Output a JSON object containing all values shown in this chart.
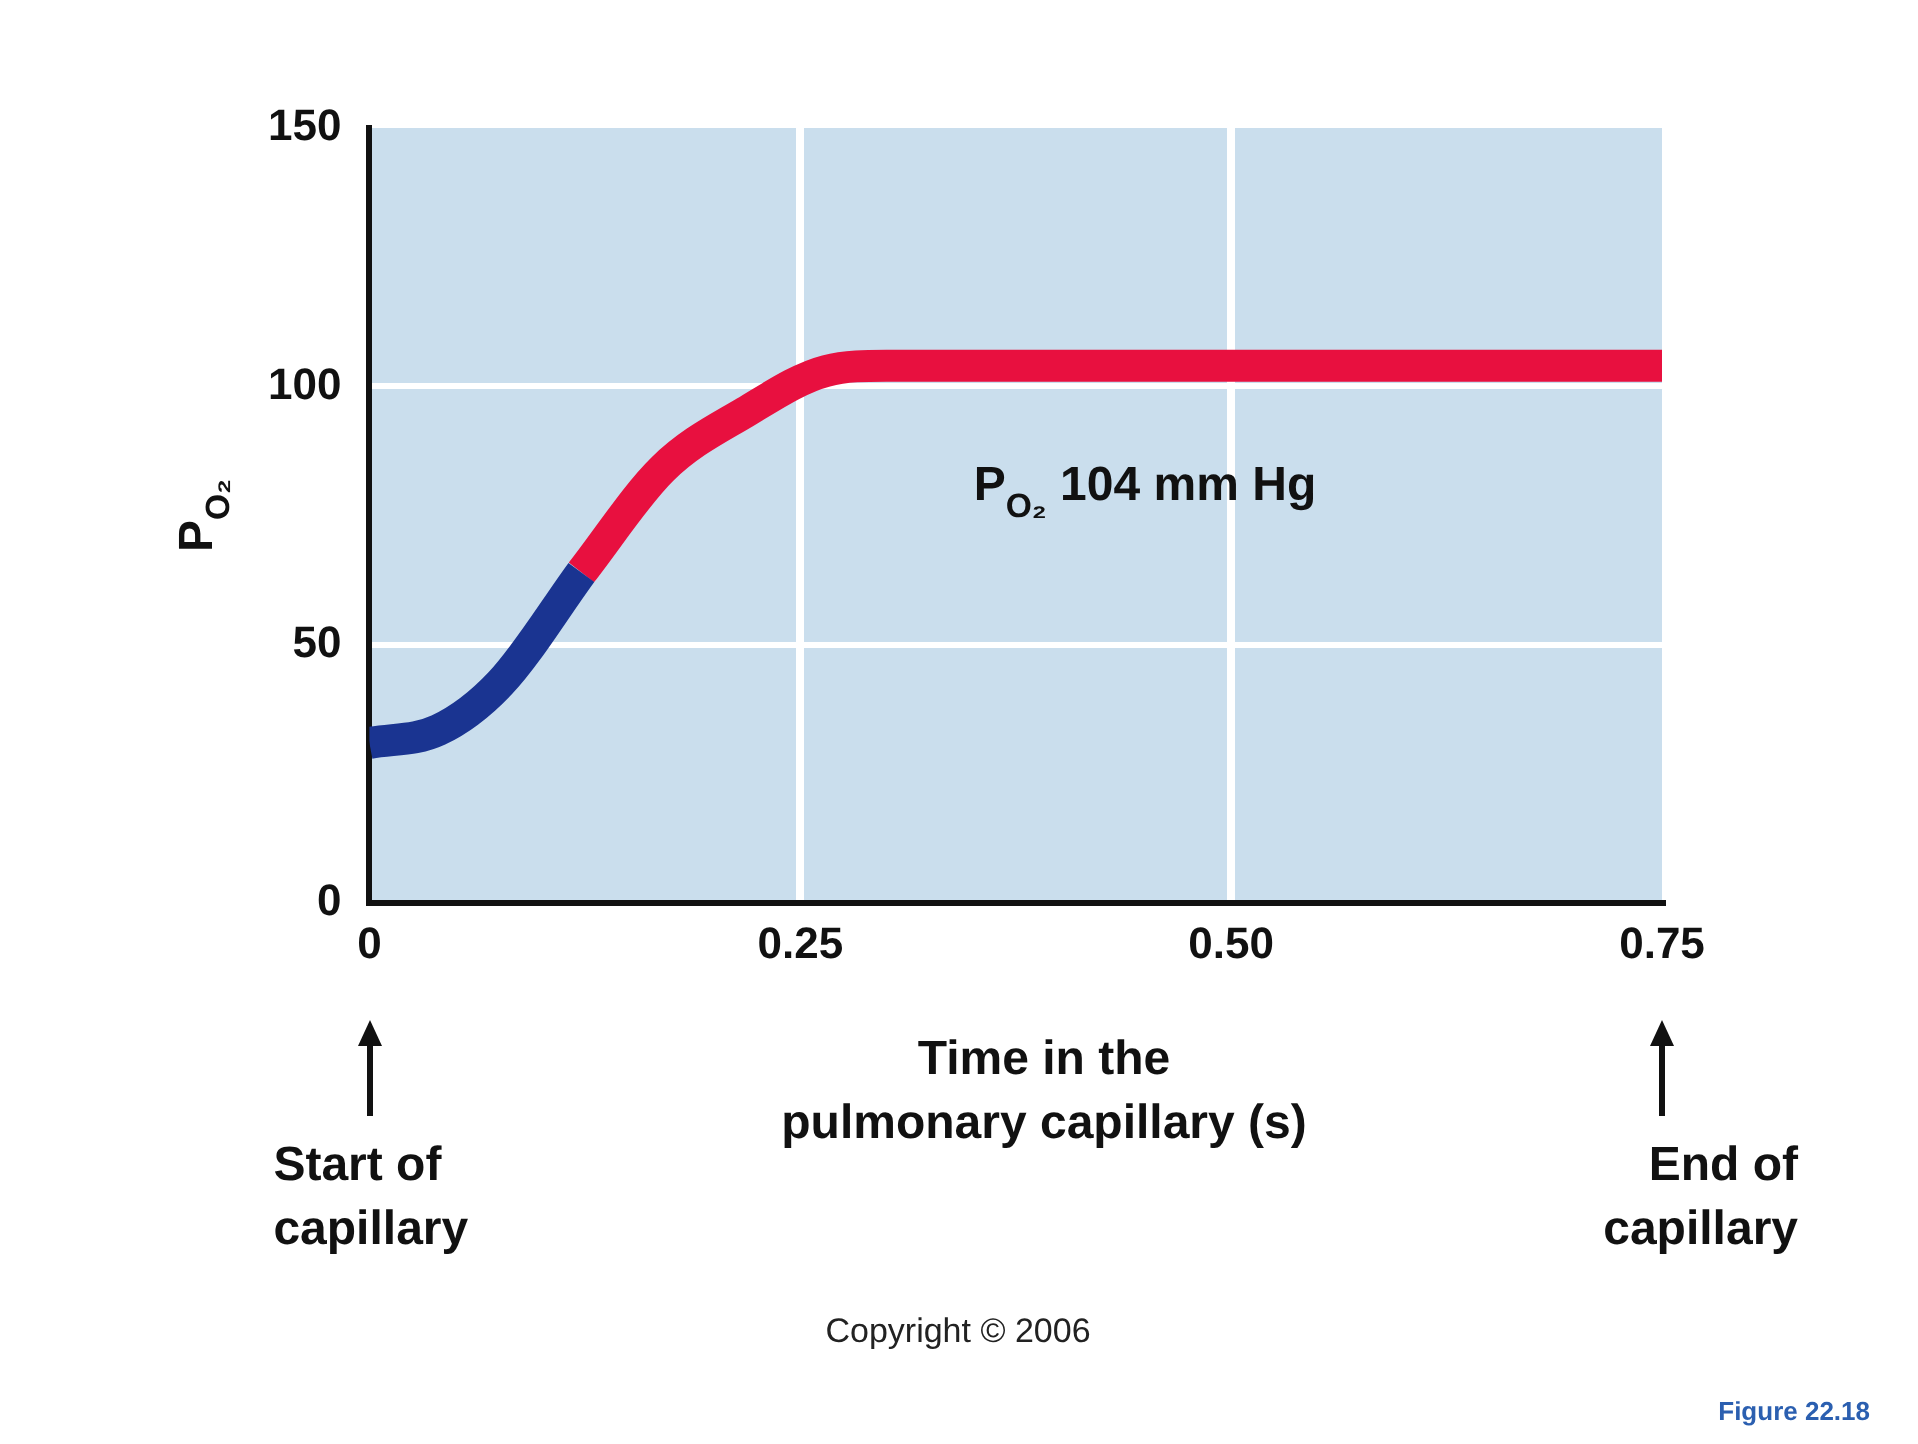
{
  "chart_data": {
    "type": "line",
    "xlabel": "Time in the\npulmonary capillary (s)",
    "ylabel": "P$_{O₂}$",
    "series": [
      {
        "color": "#1a3491",
        "x": [
          0,
          0.04,
          0.076,
          0.123
        ],
        "values": [
          31,
          33.5,
          42.6,
          64
        ]
      },
      {
        "color": "#e8103f",
        "x": [
          0.123,
          0.17,
          0.218,
          0.265,
          0.3,
          0.75
        ],
        "values": [
          64,
          84,
          95,
          103,
          104,
          104
        ]
      }
    ],
    "xlim": [
      0,
      0.75
    ],
    "ylim": [
      0,
      150
    ],
    "xticks": [
      0,
      {
        "value": 0.25,
        "label": "0.25"
      },
      {
        "value": 0.5,
        "label": "0.50"
      },
      {
        "value": 0.75,
        "label": "0.75"
      }
    ],
    "yticks": [
      0,
      50,
      100,
      150
    ],
    "grid": true,
    "marker": "none",
    "line_style": "solid",
    "annotations": [
      "P$_{O₂}$ 104 mm Hg",
      "Start of\ncapillary",
      "End of\ncapillary",
      "Copyright © 2006",
      "Figure 22.18"
    ]
  }
}
